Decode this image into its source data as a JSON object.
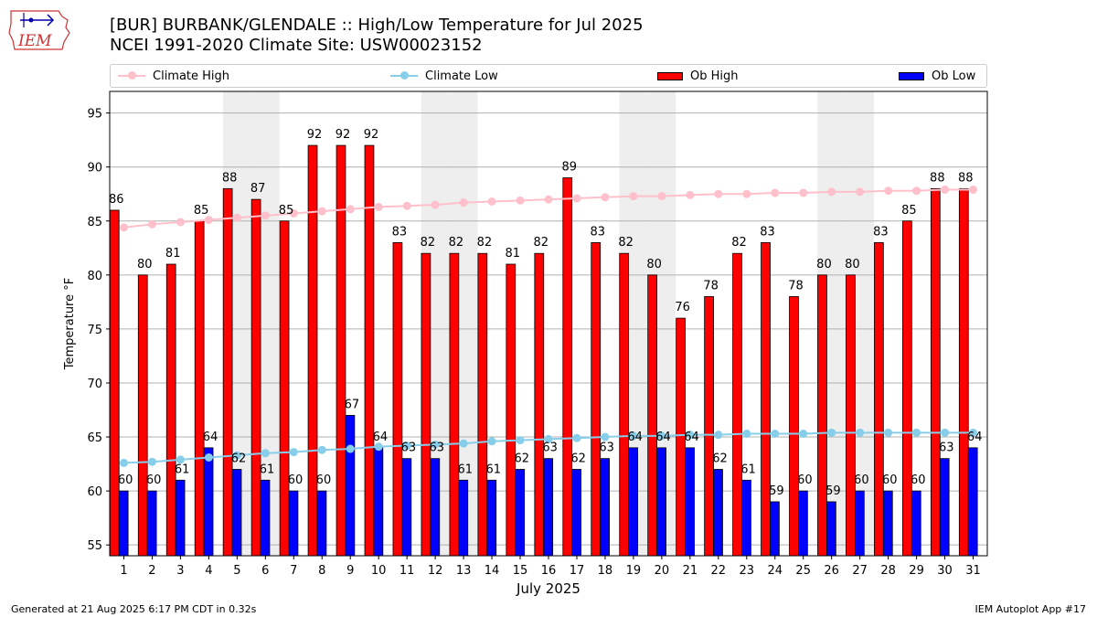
{
  "header": {
    "logo_text": "IEM",
    "title_line1": "[BUR] BURBANK/GLENDALE :: High/Low Temperature for Jul 2025",
    "title_line2": "NCEI 1991-2020 Climate Site: USW00023152"
  },
  "legend": {
    "items": [
      {
        "label": "Climate High",
        "kind": "line",
        "color": "#ffc0cb"
      },
      {
        "label": "Climate Low",
        "kind": "line",
        "color": "#87ceeb"
      },
      {
        "label": "Ob High",
        "kind": "bar",
        "color": "#ff0000"
      },
      {
        "label": "Ob Low",
        "kind": "bar",
        "color": "#0000ff"
      }
    ]
  },
  "footer": {
    "left": "Generated at 21 Aug 2025 6:17 PM CDT in 0.32s",
    "right": "IEM Autoplot App #17"
  },
  "chart_data": {
    "type": "bar",
    "xlabel": "July 2025",
    "ylabel": "Temperature °F",
    "ylim": [
      54,
      97
    ],
    "yticks": [
      55,
      60,
      65,
      70,
      75,
      80,
      85,
      90,
      95
    ],
    "grid": true,
    "legend_position": "top",
    "weekend_shading_days": [
      5,
      6,
      12,
      13,
      19,
      20,
      26,
      27
    ],
    "categories": [
      1,
      2,
      3,
      4,
      5,
      6,
      7,
      8,
      9,
      10,
      11,
      12,
      13,
      14,
      15,
      16,
      17,
      18,
      19,
      20,
      21,
      22,
      23,
      24,
      25,
      26,
      27,
      28,
      29,
      30,
      31
    ],
    "series": [
      {
        "name": "Ob High",
        "type": "bar",
        "color": "#ff0000",
        "values": [
          86,
          80,
          81,
          85,
          88,
          87,
          85,
          92,
          92,
          92,
          83,
          82,
          82,
          82,
          81,
          82,
          89,
          83,
          82,
          80,
          76,
          78,
          82,
          83,
          78,
          80,
          80,
          83,
          85,
          88,
          88
        ]
      },
      {
        "name": "Ob Low",
        "type": "bar",
        "color": "#0000ff",
        "values": [
          60,
          60,
          61,
          64,
          62,
          61,
          60,
          60,
          67,
          64,
          63,
          63,
          61,
          61,
          62,
          63,
          62,
          63,
          64,
          64,
          64,
          62,
          61,
          59,
          60,
          59,
          60,
          60,
          60,
          63,
          64
        ]
      },
      {
        "name": "Climate High",
        "type": "line",
        "color": "#ffc0cb",
        "values": [
          84.4,
          84.7,
          84.9,
          85.1,
          85.3,
          85.5,
          85.7,
          85.9,
          86.1,
          86.3,
          86.4,
          86.5,
          86.7,
          86.8,
          86.9,
          87.0,
          87.1,
          87.2,
          87.3,
          87.3,
          87.4,
          87.5,
          87.5,
          87.6,
          87.6,
          87.7,
          87.7,
          87.8,
          87.8,
          87.9,
          87.9
        ]
      },
      {
        "name": "Climate Low",
        "type": "line",
        "color": "#87ceeb",
        "values": [
          62.6,
          62.7,
          62.9,
          63.1,
          63.3,
          63.5,
          63.6,
          63.8,
          63.9,
          64.1,
          64.2,
          64.3,
          64.4,
          64.6,
          64.7,
          64.8,
          64.9,
          65.0,
          65.1,
          65.1,
          65.2,
          65.2,
          65.3,
          65.3,
          65.3,
          65.4,
          65.4,
          65.4,
          65.4,
          65.4,
          65.4
        ]
      }
    ]
  }
}
